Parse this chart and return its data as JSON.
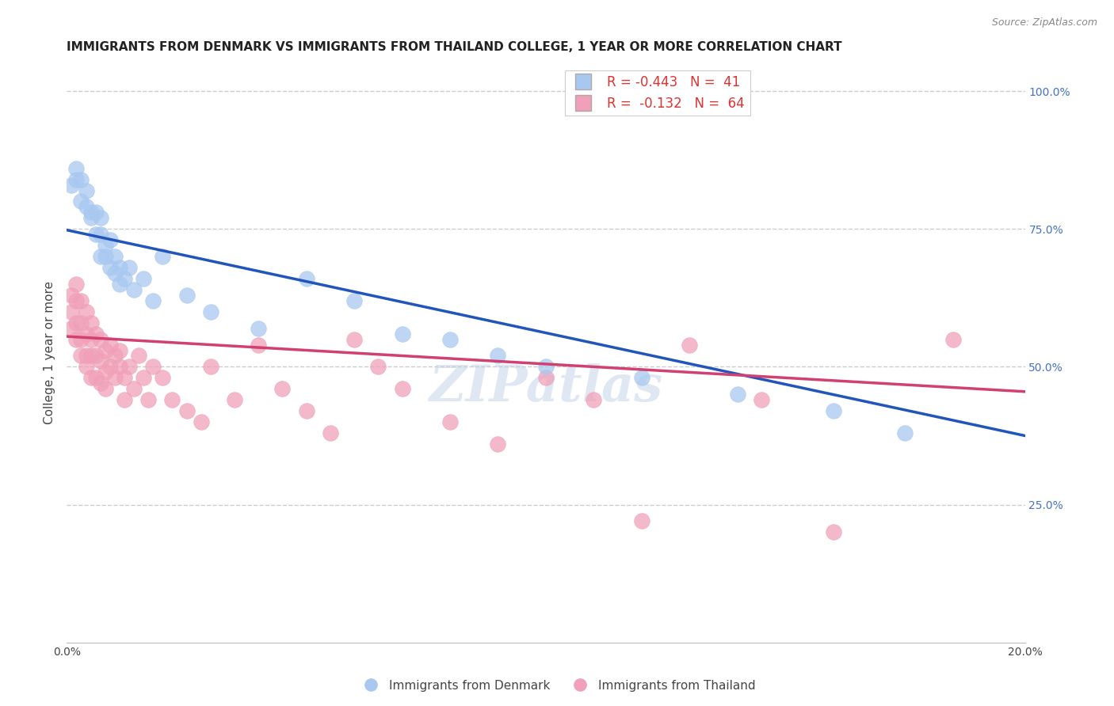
{
  "title": "IMMIGRANTS FROM DENMARK VS IMMIGRANTS FROM THAILAND COLLEGE, 1 YEAR OR MORE CORRELATION CHART",
  "source": "Source: ZipAtlas.com",
  "ylabel": "College, 1 year or more",
  "xlim": [
    0.0,
    0.2
  ],
  "ylim": [
    0.0,
    1.05
  ],
  "right_yticks": [
    0.0,
    0.25,
    0.5,
    0.75,
    1.0
  ],
  "right_yticklabels": [
    "",
    "25.0%",
    "50.0%",
    "75.0%",
    "100.0%"
  ],
  "denmark_color": "#a8c8f0",
  "denmark_line_color": "#2255bb",
  "thailand_color": "#f0a0b8",
  "thailand_line_color": "#d04070",
  "denmark_x": [
    0.001,
    0.002,
    0.002,
    0.003,
    0.003,
    0.004,
    0.004,
    0.005,
    0.005,
    0.006,
    0.006,
    0.007,
    0.007,
    0.007,
    0.008,
    0.008,
    0.009,
    0.009,
    0.01,
    0.01,
    0.011,
    0.011,
    0.012,
    0.013,
    0.014,
    0.016,
    0.018,
    0.02,
    0.025,
    0.03,
    0.04,
    0.05,
    0.06,
    0.07,
    0.08,
    0.09,
    0.1,
    0.12,
    0.14,
    0.16,
    0.175
  ],
  "denmark_y": [
    0.83,
    0.86,
    0.84,
    0.8,
    0.84,
    0.82,
    0.79,
    0.78,
    0.77,
    0.78,
    0.74,
    0.77,
    0.74,
    0.7,
    0.72,
    0.7,
    0.73,
    0.68,
    0.7,
    0.67,
    0.68,
    0.65,
    0.66,
    0.68,
    0.64,
    0.66,
    0.62,
    0.7,
    0.63,
    0.6,
    0.57,
    0.66,
    0.62,
    0.56,
    0.55,
    0.52,
    0.5,
    0.48,
    0.45,
    0.42,
    0.38
  ],
  "thailand_x": [
    0.001,
    0.001,
    0.001,
    0.002,
    0.002,
    0.002,
    0.002,
    0.003,
    0.003,
    0.003,
    0.003,
    0.004,
    0.004,
    0.004,
    0.004,
    0.005,
    0.005,
    0.005,
    0.005,
    0.006,
    0.006,
    0.006,
    0.007,
    0.007,
    0.007,
    0.008,
    0.008,
    0.008,
    0.009,
    0.009,
    0.01,
    0.01,
    0.011,
    0.011,
    0.012,
    0.012,
    0.013,
    0.014,
    0.015,
    0.016,
    0.017,
    0.018,
    0.02,
    0.022,
    0.025,
    0.028,
    0.03,
    0.035,
    0.04,
    0.045,
    0.05,
    0.055,
    0.06,
    0.065,
    0.07,
    0.08,
    0.09,
    0.1,
    0.11,
    0.12,
    0.13,
    0.145,
    0.16,
    0.185
  ],
  "thailand_y": [
    0.63,
    0.6,
    0.57,
    0.65,
    0.62,
    0.58,
    0.55,
    0.62,
    0.58,
    0.55,
    0.52,
    0.6,
    0.56,
    0.52,
    0.5,
    0.58,
    0.55,
    0.52,
    0.48,
    0.56,
    0.52,
    0.48,
    0.55,
    0.51,
    0.47,
    0.53,
    0.49,
    0.46,
    0.54,
    0.5,
    0.52,
    0.48,
    0.53,
    0.5,
    0.48,
    0.44,
    0.5,
    0.46,
    0.52,
    0.48,
    0.44,
    0.5,
    0.48,
    0.44,
    0.42,
    0.4,
    0.5,
    0.44,
    0.54,
    0.46,
    0.42,
    0.38,
    0.55,
    0.5,
    0.46,
    0.4,
    0.36,
    0.48,
    0.44,
    0.22,
    0.54,
    0.44,
    0.2,
    0.55
  ],
  "denmark_trend_x0": 0.0,
  "denmark_trend_y0": 0.748,
  "denmark_trend_x1": 0.2,
  "denmark_trend_y1": 0.375,
  "thailand_trend_x0": 0.0,
  "thailand_trend_y0": 0.555,
  "thailand_trend_x1": 0.2,
  "thailand_trend_y1": 0.455,
  "watermark": "ZIPatlas",
  "background_color": "#ffffff",
  "grid_color": "#cccccc",
  "title_fontsize": 11,
  "axis_label_fontsize": 11,
  "tick_fontsize": 10,
  "right_tick_color": "#4472c4"
}
